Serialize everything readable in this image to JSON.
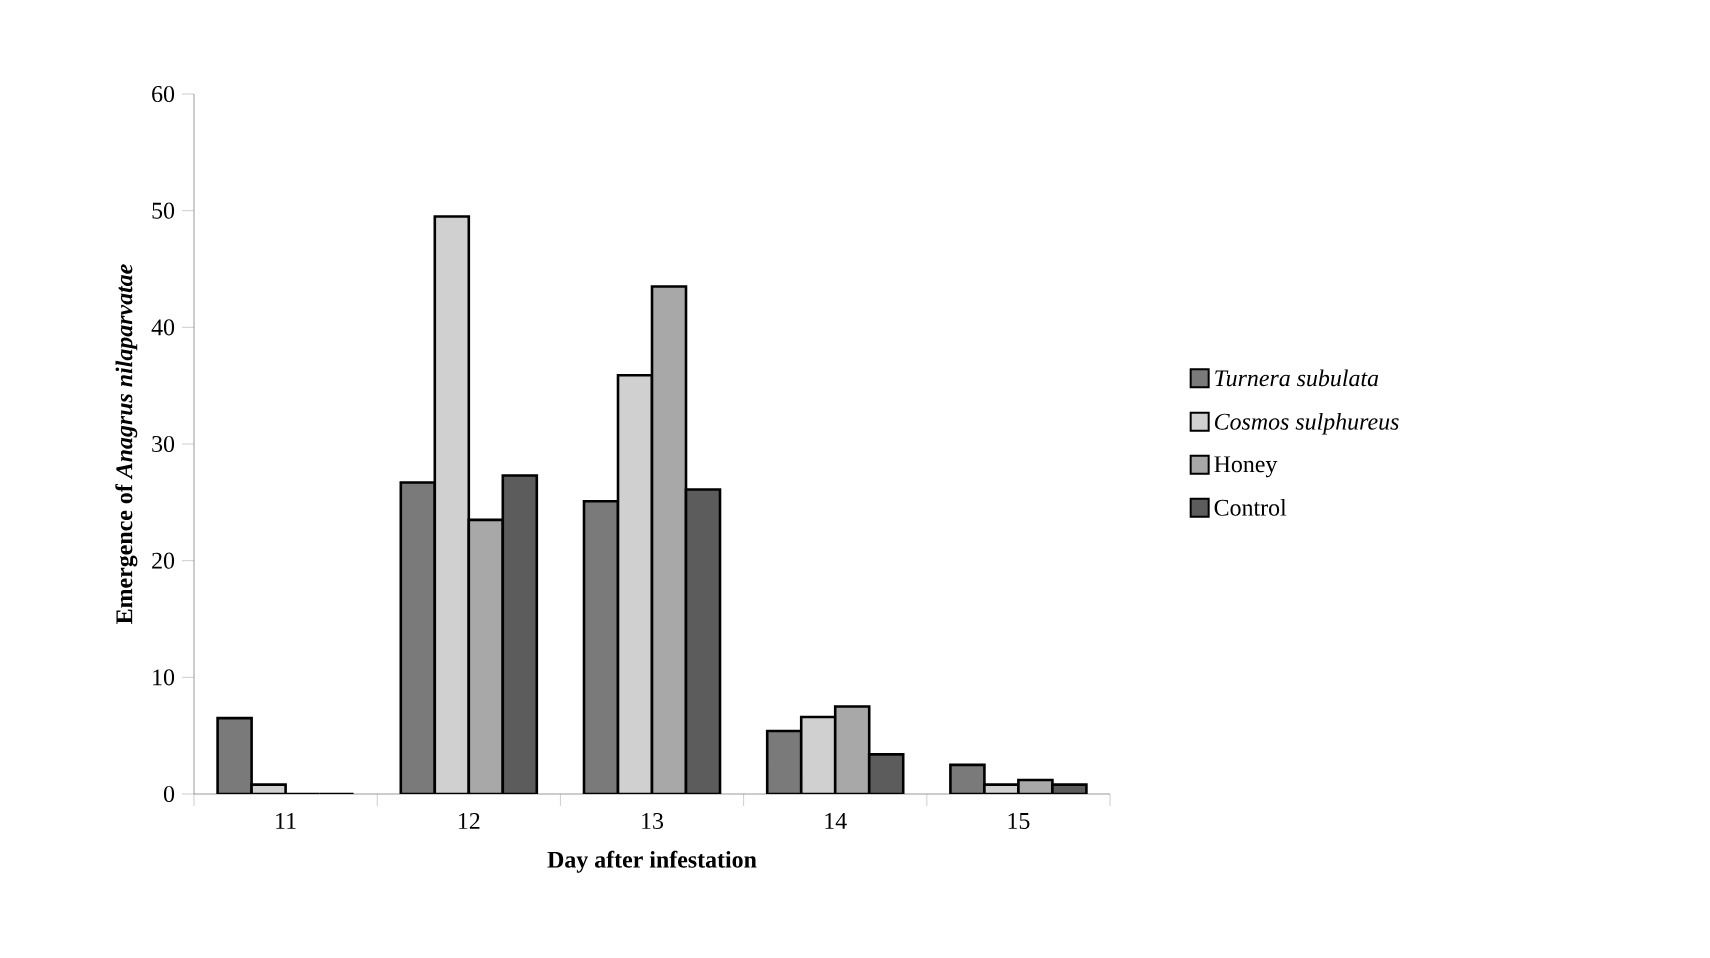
{
  "chart_data": {
    "type": "bar",
    "xlabel": "Day after infestation",
    "ylabel": "Emergence of *Anagrus nilaparvatae*",
    "categories": [
      "11",
      "12",
      "13",
      "14",
      "15"
    ],
    "series": [
      {
        "name": "*Turnera subulata*",
        "color": "#7a7a7a",
        "values": [
          6.5,
          26.7,
          25.1,
          5.4,
          2.5
        ]
      },
      {
        "name": "*Cosmos sulphureus*",
        "color": "#d0d0d0",
        "values": [
          0.8,
          49.5,
          35.9,
          6.6,
          0.8
        ]
      },
      {
        "name": "Honey",
        "color": "#a8a8a8",
        "values": [
          0,
          23.5,
          43.5,
          7.5,
          1.2
        ]
      },
      {
        "name": "Control",
        "color": "#5c5c5c",
        "values": [
          0,
          27.3,
          26.1,
          3.4,
          0.8
        ]
      }
    ],
    "ylim": [
      0,
      60
    ],
    "yticks": [
      0,
      10,
      20,
      30,
      40,
      50,
      60
    ],
    "grid": false,
    "legend": "right"
  }
}
